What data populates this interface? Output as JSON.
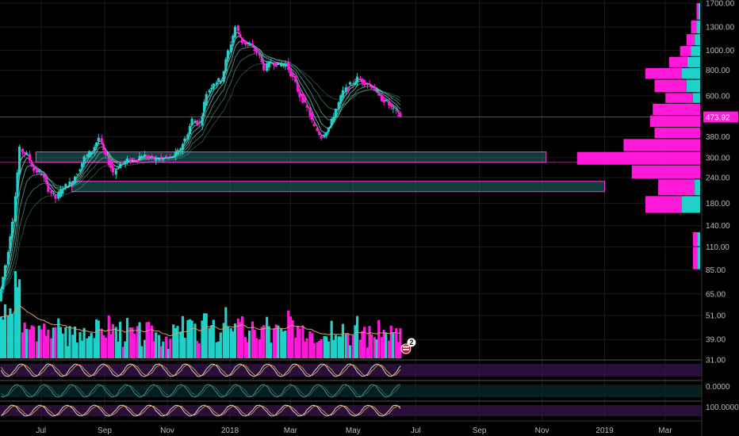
{
  "colors": {
    "background": "#000000",
    "bull": "#1fd1c8",
    "bear": "#ff1ad9",
    "grid": "#1c1c1c",
    "axis_text": "#b9b9b9",
    "zone_fill": "#1d6f6b",
    "zone_border": "#ff3ad9",
    "ribbon": "#7fe8da",
    "badge": "#ffffff"
  },
  "current_price": {
    "label": "473.92"
  },
  "event_badge": {
    "label": "2",
    "icon": "flag-icon"
  },
  "chart_data": {
    "type": "candlestick",
    "scale": "log",
    "ylim": [
      31,
      1700
    ],
    "price_ticks": [
      "1700.00",
      "1300.00",
      "1000.00",
      "800.00",
      "600.00",
      "473.92",
      "380.00",
      "300.00",
      "240.00",
      "180.00",
      "140.00",
      "110.00",
      "85.00",
      "65.00",
      "51.00",
      "39.00",
      "31.00"
    ],
    "x_ticks": [
      "Jul",
      "Sep",
      "Nov",
      "2018",
      "Mar",
      "May",
      "Jul",
      "Sep",
      "Nov",
      "2019",
      "Mar"
    ],
    "price_path": [
      [
        "2017-05-22",
        60
      ],
      [
        "2017-05-29",
        90
      ],
      [
        "2017-06-05",
        150
      ],
      [
        "2017-06-12",
        330
      ],
      [
        "2017-06-19",
        310
      ],
      [
        "2017-06-26",
        260
      ],
      [
        "2017-07-03",
        250
      ],
      [
        "2017-07-10",
        210
      ],
      [
        "2017-07-17",
        190
      ],
      [
        "2017-07-24",
        215
      ],
      [
        "2017-07-31",
        225
      ],
      [
        "2017-08-07",
        255
      ],
      [
        "2017-08-14",
        300
      ],
      [
        "2017-08-21",
        325
      ],
      [
        "2017-08-28",
        375
      ],
      [
        "2017-09-04",
        300
      ],
      [
        "2017-09-11",
        255
      ],
      [
        "2017-09-18",
        280
      ],
      [
        "2017-09-25",
        290
      ],
      [
        "2017-10-02",
        295
      ],
      [
        "2017-10-09",
        310
      ],
      [
        "2017-10-16",
        300
      ],
      [
        "2017-10-23",
        295
      ],
      [
        "2017-10-30",
        298
      ],
      [
        "2017-11-06",
        300
      ],
      [
        "2017-11-13",
        320
      ],
      [
        "2017-11-20",
        370
      ],
      [
        "2017-11-27",
        460
      ],
      [
        "2017-12-04",
        440
      ],
      [
        "2017-12-11",
        620
      ],
      [
        "2017-12-18",
        700
      ],
      [
        "2017-12-25",
        720
      ],
      [
        "2018-01-01",
        990
      ],
      [
        "2018-01-08",
        1300
      ],
      [
        "2018-01-15",
        1100
      ],
      [
        "2018-01-22",
        1050
      ],
      [
        "2018-01-29",
        980
      ],
      [
        "2018-02-05",
        820
      ],
      [
        "2018-02-12",
        880
      ],
      [
        "2018-02-19",
        850
      ],
      [
        "2018-02-26",
        860
      ],
      [
        "2018-03-05",
        730
      ],
      [
        "2018-03-12",
        600
      ],
      [
        "2018-03-19",
        520
      ],
      [
        "2018-03-26",
        420
      ],
      [
        "2018-04-02",
        380
      ],
      [
        "2018-04-09",
        420
      ],
      [
        "2018-04-16",
        520
      ],
      [
        "2018-04-23",
        630
      ],
      [
        "2018-04-30",
        680
      ],
      [
        "2018-05-07",
        730
      ],
      [
        "2018-05-14",
        700
      ],
      [
        "2018-05-21",
        670
      ],
      [
        "2018-05-28",
        590
      ],
      [
        "2018-06-04",
        560
      ],
      [
        "2018-06-11",
        510
      ],
      [
        "2018-06-18",
        473.92
      ]
    ],
    "volume_profile": [
      {
        "price_low": 1400,
        "price_high": 1700,
        "bull": 2,
        "bear": 2
      },
      {
        "price_low": 1200,
        "price_high": 1400,
        "bull": 4,
        "bear": 6
      },
      {
        "price_low": 1050,
        "price_high": 1200,
        "bull": 6,
        "bear": 9
      },
      {
        "price_low": 930,
        "price_high": 1050,
        "bull": 10,
        "bear": 12
      },
      {
        "price_low": 820,
        "price_high": 930,
        "bull": 14,
        "bear": 20
      },
      {
        "price_low": 720,
        "price_high": 820,
        "bull": 20,
        "bear": 40
      },
      {
        "price_low": 620,
        "price_high": 720,
        "bull": 15,
        "bear": 35
      },
      {
        "price_low": 550,
        "price_high": 620,
        "bull": 8,
        "bear": 30
      },
      {
        "price_low": 480,
        "price_high": 550,
        "bull": 0,
        "bear": 52
      },
      {
        "price_low": 420,
        "price_high": 480,
        "bull": 0,
        "bear": 55
      },
      {
        "price_low": 370,
        "price_high": 420,
        "bull": 0,
        "bear": 50
      },
      {
        "price_low": 320,
        "price_high": 370,
        "bull": 0,
        "bear": 84
      },
      {
        "price_low": 275,
        "price_high": 320,
        "bull": 0,
        "bear": 135
      },
      {
        "price_low": 235,
        "price_high": 275,
        "bull": 0,
        "bear": 75
      },
      {
        "price_low": 195,
        "price_high": 235,
        "bull": 6,
        "bear": 40
      },
      {
        "price_low": 160,
        "price_high": 195,
        "bull": 20,
        "bear": 40
      },
      {
        "price_low": 130,
        "price_high": 160,
        "bull": 0,
        "bear": 0
      },
      {
        "price_low": 110,
        "price_high": 130,
        "bull": 3,
        "bear": 5
      },
      {
        "price_low": 85,
        "price_high": 110,
        "bull": 3,
        "bear": 5
      }
    ],
    "zones": [
      {
        "price_low": 285,
        "price_high": 320,
        "from": "2017-06-26",
        "to": "2018-11-05"
      },
      {
        "price_low": 205,
        "price_high": 230,
        "from": "2017-07-31",
        "to": "2019-01-01"
      }
    ],
    "ribbon_periods": [
      8,
      13,
      21,
      34,
      55,
      89
    ],
    "horizontal_lines": [
      473.92,
      285
    ],
    "volume_bars": "derived from price_path",
    "oscillators": [
      {
        "name": "osc-1",
        "ticks": []
      },
      {
        "name": "osc-2",
        "ticks": [
          "0.0000"
        ]
      },
      {
        "name": "osc-3",
        "ticks": [
          "100.0000"
        ]
      }
    ]
  }
}
